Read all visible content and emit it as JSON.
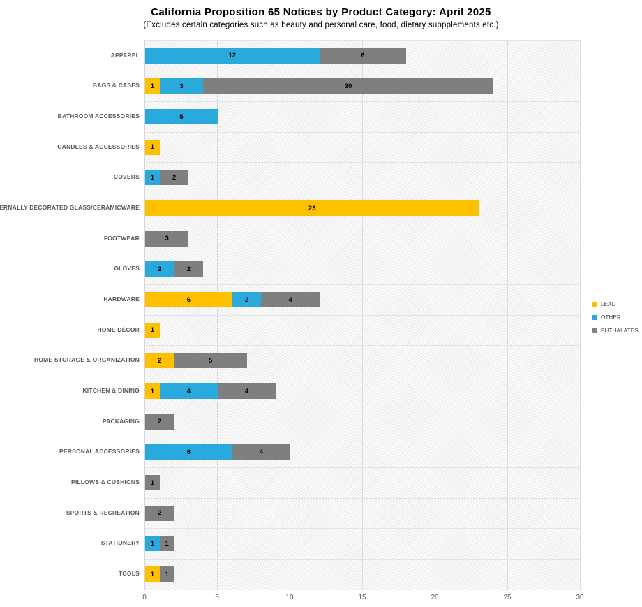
{
  "chart_data": {
    "type": "bar",
    "orientation": "horizontal",
    "stacked": true,
    "title": "California Proposition 65 Notices by Product Category: April 2025",
    "subtitle": "(Excludes certain categories such as beauty and personal care, food, dietary suppplements etc.)",
    "categories": [
      "APPAREL",
      "BAGS & CASES",
      "BATHROOM ACCESSORIES",
      "CANDLES & ACCESSORIES",
      "COVERS",
      "EXTERNALLY DECORATED GLASS/CERAMICWARE",
      "FOOTWEAR",
      "GLOVES",
      "HARDWARE",
      "HOME DÉCOR",
      "HOME STORAGE & ORGANIZATION",
      "KITCHEN & DINING",
      "PACKAGING",
      "PERSONAL ACCESSORIES",
      "PILLOWS & CUSHIONS",
      "SPORTS & RECREATION",
      "STATIONERY",
      "TOOLS"
    ],
    "series": [
      {
        "name": "LEAD",
        "color": "#FFC000",
        "values": [
          0,
          1,
          0,
          1,
          0,
          23,
          0,
          0,
          6,
          1,
          2,
          1,
          0,
          0,
          0,
          0,
          0,
          1
        ]
      },
      {
        "name": "OTHER",
        "color": "#29A9DC",
        "values": [
          12,
          3,
          5,
          0,
          1,
          0,
          0,
          2,
          2,
          0,
          0,
          4,
          0,
          6,
          0,
          0,
          1,
          0
        ]
      },
      {
        "name": "PHTHALATES",
        "color": "#7F7F7F",
        "values": [
          6,
          20,
          0,
          0,
          2,
          0,
          3,
          2,
          4,
          0,
          5,
          4,
          2,
          4,
          1,
          2,
          1,
          1
        ]
      }
    ],
    "x_ticks": [
      0,
      5,
      10,
      15,
      20,
      25,
      30
    ],
    "xlim": [
      0,
      30
    ],
    "grid": true,
    "legend_position": "right",
    "plot_background_pattern": "diagonal-crosshatch"
  },
  "style_colors": {
    "grid_line": "#E0E0E0",
    "axis_text": "#595959",
    "category_text": "#595959",
    "title_text": "#000000",
    "bar_label_text": "#000000"
  }
}
